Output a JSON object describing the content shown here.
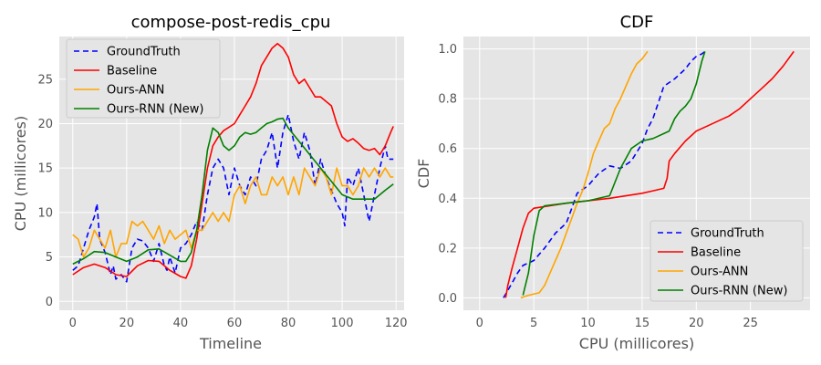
{
  "chart_data": [
    {
      "type": "line",
      "title": "compose-post-redis_cpu",
      "xlabel": "Timeline",
      "ylabel": "CPU (millicores)",
      "xlim": [
        -5,
        123
      ],
      "ylim": [
        -1,
        29.8
      ],
      "xticks": [
        0,
        20,
        40,
        60,
        80,
        100,
        120
      ],
      "yticks": [
        0,
        5,
        10,
        15,
        20,
        25
      ],
      "grid": true,
      "legend": "top-left",
      "x": [
        0,
        5,
        10,
        15,
        20,
        25,
        30,
        35,
        40,
        45,
        50,
        55,
        60,
        65,
        70,
        75,
        80,
        85,
        90,
        95,
        100,
        105,
        110,
        115,
        120
      ],
      "series": [
        {
          "name": "GroundTruth",
          "color": "#0000ff",
          "dash": "6,4",
          "x": [
            0,
            2,
            4,
            6,
            8,
            9,
            10,
            12,
            14,
            15,
            16,
            18,
            20,
            22,
            24,
            26,
            28,
            30,
            32,
            34,
            35,
            36,
            38,
            40,
            42,
            44,
            46,
            48,
            50,
            52,
            54,
            56,
            58,
            60,
            62,
            64,
            66,
            68,
            70,
            72,
            74,
            76,
            78,
            80,
            82,
            84,
            86,
            88,
            90,
            92,
            94,
            96,
            98,
            100,
            101,
            102,
            104,
            106,
            108,
            110,
            111,
            112,
            114,
            116,
            117,
            119
          ],
          "y": [
            3.5,
            4,
            6,
            8,
            9.5,
            11,
            7,
            5.5,
            3,
            4,
            2.5,
            3,
            2.2,
            6,
            7,
            6.8,
            6,
            4.5,
            6.5,
            4,
            3.5,
            5,
            3.2,
            6,
            6.5,
            7.5,
            9,
            8,
            12,
            15,
            16,
            15,
            12,
            15,
            13,
            12,
            14,
            13,
            16,
            17,
            19,
            15,
            19,
            21,
            18,
            16,
            19,
            17,
            13,
            16,
            14,
            12.5,
            11,
            10,
            8.5,
            14,
            13,
            15,
            12,
            9,
            10.5,
            12,
            15,
            17.5,
            16,
            16
          ]
        },
        {
          "name": "Baseline",
          "color": "#ff0000",
          "dash": "",
          "x": [
            0,
            4,
            8,
            12,
            16,
            20,
            24,
            28,
            32,
            36,
            40,
            42,
            44,
            46,
            48,
            50,
            52,
            54,
            56,
            58,
            60,
            62,
            64,
            66,
            68,
            70,
            72,
            74,
            76,
            78,
            80,
            82,
            84,
            86,
            88,
            90,
            92,
            94,
            96,
            98,
            100,
            102,
            104,
            106,
            108,
            110,
            112,
            114,
            116,
            118,
            119
          ],
          "y": [
            3,
            3.8,
            4.2,
            3.8,
            3,
            2.8,
            4,
            4.6,
            4.5,
            3.5,
            2.8,
            2.6,
            4,
            7,
            11,
            15,
            17.5,
            18.5,
            19.2,
            19.6,
            20,
            21,
            22,
            23,
            24.5,
            26.5,
            27.5,
            28.5,
            29,
            28.5,
            27.5,
            25.5,
            24.5,
            25,
            24,
            23,
            23,
            22.5,
            22,
            20,
            18.5,
            18,
            18.3,
            17.8,
            17.2,
            17,
            17.2,
            16.5,
            17.5,
            19,
            19.7
          ]
        },
        {
          "name": "Ours-ANN",
          "color": "#ffa500",
          "dash": "",
          "x": [
            0,
            2,
            4,
            6,
            8,
            10,
            12,
            14,
            16,
            18,
            20,
            22,
            24,
            26,
            28,
            30,
            32,
            34,
            36,
            38,
            40,
            42,
            44,
            46,
            48,
            50,
            52,
            54,
            56,
            58,
            60,
            62,
            64,
            66,
            68,
            70,
            72,
            74,
            76,
            78,
            80,
            82,
            84,
            86,
            88,
            90,
            92,
            94,
            96,
            98,
            100,
            102,
            104,
            106,
            108,
            110,
            112,
            114,
            116,
            118,
            119
          ],
          "y": [
            7.5,
            7,
            5,
            6,
            8,
            7,
            6,
            8,
            5,
            6.5,
            6.5,
            9,
            8.5,
            9,
            8,
            7,
            8.5,
            6.5,
            8,
            7,
            7.5,
            8,
            6,
            8,
            8,
            9,
            10,
            9,
            10,
            9,
            12,
            13,
            11,
            13,
            14,
            12,
            12,
            14,
            13,
            14,
            12,
            14,
            12,
            15,
            14,
            13,
            15,
            14,
            12,
            15,
            13,
            13,
            12,
            13,
            15,
            14,
            15,
            14,
            15,
            14,
            14
          ]
        },
        {
          "name": "Ours-RNN (New)",
          "color": "#008000",
          "dash": "",
          "x": [
            0,
            4,
            8,
            12,
            16,
            20,
            24,
            28,
            32,
            36,
            40,
            42,
            44,
            46,
            48,
            50,
            52,
            54,
            56,
            58,
            60,
            62,
            64,
            66,
            68,
            70,
            72,
            74,
            76,
            78,
            80,
            84,
            88,
            92,
            96,
            100,
            104,
            108,
            112,
            116,
            119
          ],
          "y": [
            4.2,
            4.8,
            5.6,
            5.5,
            5,
            4.5,
            5,
            5.8,
            5.9,
            5.2,
            4.5,
            4.5,
            5.5,
            8,
            12,
            17,
            19.5,
            19,
            17.5,
            17,
            17.5,
            18.5,
            19,
            18.8,
            19,
            19.5,
            20,
            20.2,
            20.5,
            20.6,
            19.5,
            18,
            16.5,
            15,
            13.5,
            12,
            11.5,
            11.5,
            11.5,
            12.5,
            13.2
          ]
        }
      ]
    },
    {
      "type": "line",
      "title": "CDF",
      "xlabel": "CPU (millicores)",
      "ylabel": "CDF",
      "xlim": [
        -1.5,
        30.5
      ],
      "ylim": [
        -0.05,
        1.05
      ],
      "xticks": [
        0,
        5,
        10,
        15,
        20,
        25
      ],
      "yticks": [
        0.0,
        0.2,
        0.4,
        0.6,
        0.8,
        1.0
      ],
      "grid": true,
      "legend": "bottom-right",
      "series": [
        {
          "name": "GroundTruth",
          "color": "#0000ff",
          "dash": "6,4",
          "x": [
            2.2,
            2.6,
            3,
            3.5,
            4,
            5,
            6,
            7,
            8,
            8.5,
            9,
            10,
            11,
            12,
            13,
            14,
            15,
            15.5,
            16,
            17,
            18,
            19,
            19.5,
            20,
            20.5,
            20.8
          ],
          "y": [
            0,
            0.03,
            0.06,
            0.1,
            0.13,
            0.15,
            0.2,
            0.26,
            0.3,
            0.36,
            0.42,
            0.45,
            0.5,
            0.53,
            0.52,
            0.55,
            0.62,
            0.68,
            0.72,
            0.85,
            0.88,
            0.92,
            0.95,
            0.97,
            0.98,
            0.99
          ]
        },
        {
          "name": "Baseline",
          "color": "#ff0000",
          "dash": "",
          "x": [
            2.4,
            2.6,
            3,
            3.5,
            4,
            4.5,
            5,
            8,
            12,
            15,
            16,
            17,
            17.3,
            17.5,
            18,
            19,
            20,
            21,
            22,
            23,
            24,
            25,
            26,
            27,
            28,
            29
          ],
          "y": [
            0,
            0.05,
            0.12,
            0.2,
            0.28,
            0.34,
            0.36,
            0.38,
            0.4,
            0.42,
            0.43,
            0.44,
            0.48,
            0.55,
            0.58,
            0.63,
            0.67,
            0.69,
            0.71,
            0.73,
            0.76,
            0.8,
            0.84,
            0.88,
            0.93,
            0.99
          ]
        },
        {
          "name": "Ours-ANN",
          "color": "#ffa500",
          "dash": "",
          "x": [
            3.8,
            4.5,
            5.5,
            6,
            6.5,
            7,
            7.5,
            8,
            8.5,
            9,
            9.5,
            10,
            10.5,
            11,
            11.5,
            12,
            12.5,
            13,
            13.5,
            14,
            14.5,
            15,
            15.5
          ],
          "y": [
            0,
            0.01,
            0.02,
            0.05,
            0.1,
            0.15,
            0.2,
            0.26,
            0.32,
            0.38,
            0.43,
            0.5,
            0.58,
            0.63,
            0.68,
            0.7,
            0.76,
            0.8,
            0.85,
            0.9,
            0.94,
            0.96,
            0.99
          ]
        },
        {
          "name": "Ours-RNN (New)",
          "color": "#008000",
          "dash": "",
          "x": [
            4,
            4.5,
            5,
            5.5,
            6,
            8,
            10,
            12,
            13,
            14,
            15,
            16,
            17,
            17.5,
            18,
            18.5,
            19,
            19.5,
            20,
            20.5,
            20.8
          ],
          "y": [
            0.01,
            0.1,
            0.25,
            0.35,
            0.37,
            0.38,
            0.39,
            0.41,
            0.52,
            0.6,
            0.63,
            0.64,
            0.66,
            0.67,
            0.72,
            0.75,
            0.77,
            0.8,
            0.86,
            0.95,
            0.99
          ]
        }
      ]
    }
  ]
}
